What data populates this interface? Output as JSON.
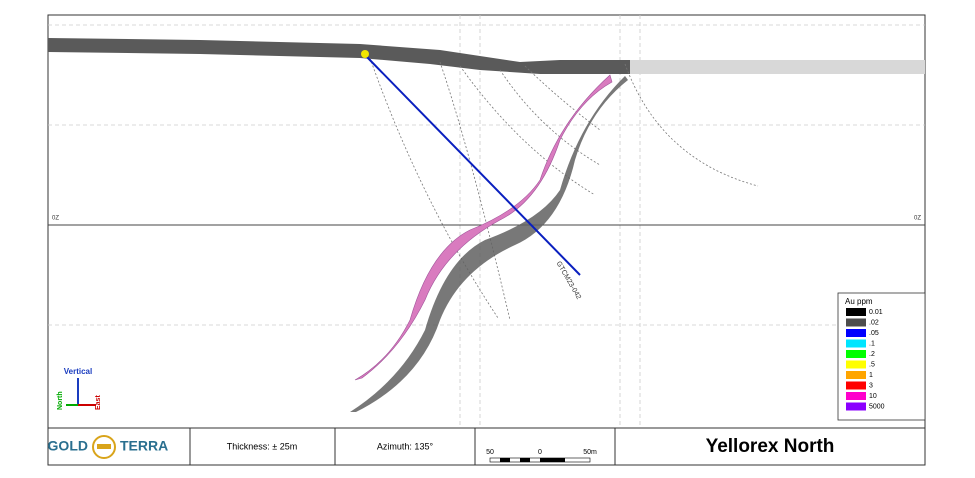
{
  "section": {
    "level_label_left": "0Z",
    "level_label_right": "0Z",
    "drill_hole": "GTCM23-042"
  },
  "legend": {
    "title": "Au ppm",
    "items": [
      {
        "label": "0.01",
        "color": "#000000"
      },
      {
        "label": ".02",
        "color": "#4d4d4d"
      },
      {
        "label": ".05",
        "color": "#0000ff"
      },
      {
        "label": ".1",
        "color": "#00e5ff"
      },
      {
        "label": ".2",
        "color": "#00ff00"
      },
      {
        "label": ".5",
        "color": "#ffff00"
      },
      {
        "label": "1",
        "color": "#ffa500"
      },
      {
        "label": "3",
        "color": "#ff0000"
      },
      {
        "label": "10",
        "color": "#ff00cc"
      },
      {
        "label": "5000",
        "color": "#8b00ff"
      }
    ]
  },
  "orientation": {
    "vertical": "Vertical",
    "north": "North",
    "east": "East"
  },
  "footer": {
    "logo_left": "GOLD",
    "logo_right": "TERRA",
    "thickness": "Thickness: ± 25m",
    "azimuth": "Azimuth: 135°",
    "scale_labels": [
      "50",
      "0",
      "50m"
    ],
    "title": "Yellorex North"
  }
}
